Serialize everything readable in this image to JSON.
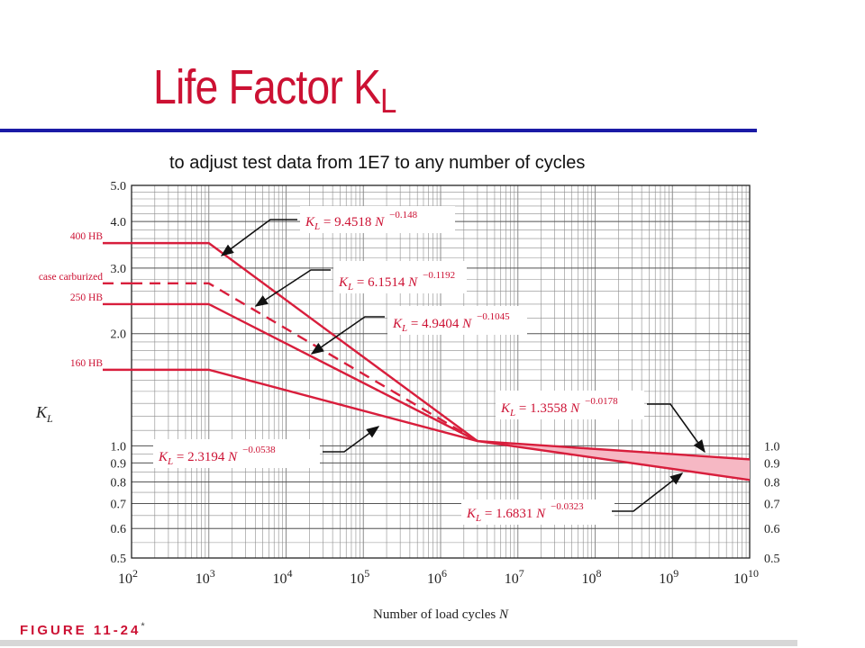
{
  "header": {
    "title_main": "Life Factor K",
    "title_sub": "L",
    "subtitle": "to adjust test data from 1E7 to any number of cycles"
  },
  "figure": {
    "label": "FIGURE 11-24",
    "mark": "*"
  },
  "colors": {
    "accent": "#cc1133",
    "line": "#d81e3c",
    "band": "#f6b8c4",
    "rule": "#1a1aa6",
    "grid": "#8c8c8c"
  },
  "chart_data": {
    "type": "line",
    "title": "",
    "xlabel": "Number of load cycles N",
    "ylabel": "K_L",
    "x_scale": "log",
    "y_scale": "log",
    "xlim": [
      100,
      10000000000
    ],
    "ylim": [
      0.5,
      5.0
    ],
    "grid": true,
    "x_tick_labels": [
      {
        "base": "10",
        "exp": "2",
        "value": 100
      },
      {
        "base": "10",
        "exp": "3",
        "value": 1000
      },
      {
        "base": "10",
        "exp": "4",
        "value": 10000
      },
      {
        "base": "10",
        "exp": "5",
        "value": 100000
      },
      {
        "base": "10",
        "exp": "6",
        "value": 1000000
      },
      {
        "base": "10",
        "exp": "7",
        "value": 10000000
      },
      {
        "base": "10",
        "exp": "8",
        "value": 100000000
      },
      {
        "base": "10",
        "exp": "9",
        "value": 1000000000
      },
      {
        "base": "10",
        "exp": "10",
        "value": 10000000000
      }
    ],
    "y_tick_labels_left": [
      "5.0",
      "4.0",
      "3.0",
      "2.0",
      "1.0",
      "0.9",
      "0.8",
      "0.7",
      "0.6",
      "0.5"
    ],
    "y_tick_values_left": [
      5.0,
      4.0,
      3.0,
      2.0,
      1.0,
      0.9,
      0.8,
      0.7,
      0.6,
      0.5
    ],
    "y_tick_labels_right": [
      "1.0",
      "0.9",
      "0.8",
      "0.7",
      "0.6",
      "0.5"
    ],
    "y_tick_values_right": [
      1.0,
      0.9,
      0.8,
      0.7,
      0.6,
      0.5
    ],
    "series": [
      {
        "name": "400 HB",
        "style": "solid",
        "x": [
          100,
          1000,
          3000000
        ],
        "y": [
          3.5,
          3.5,
          1.03
        ]
      },
      {
        "name": "case carburized",
        "style": "dashed",
        "x": [
          100,
          1000,
          3000000
        ],
        "y": [
          2.73,
          2.73,
          1.03
        ]
      },
      {
        "name": "250 HB",
        "style": "solid",
        "x": [
          100,
          1000,
          3000000
        ],
        "y": [
          2.4,
          2.4,
          1.03
        ]
      },
      {
        "name": "160 HB",
        "style": "solid",
        "x": [
          100,
          1000,
          3000000
        ],
        "y": [
          1.6,
          1.6,
          1.03
        ]
      },
      {
        "x": [
          3000000,
          10000000000
        ],
        "y": [
          1.03,
          0.92
        ],
        "style": "solid"
      },
      {
        "x": [
          3000000,
          10000000000
        ],
        "y": [
          1.03,
          0.81
        ],
        "style": "solid"
      }
    ],
    "band": {
      "x": [
        3000000,
        10000000000
      ],
      "y_upper": [
        1.03,
        0.92
      ],
      "y_lower": [
        1.03,
        0.81
      ]
    },
    "annotations": [
      {
        "base": "K",
        "sub": "L",
        "text": " = 9.4518 N",
        "exp": "−0.148",
        "target_x": 1000,
        "target_y": 3.5
      },
      {
        "base": "K",
        "sub": "L",
        "text": " = 6.1514 N",
        "exp": "−0.1192",
        "target_x": 4500,
        "target_y": 2.25
      },
      {
        "base": "K",
        "sub": "L",
        "text": " = 4.9404 N",
        "exp": "−0.1045",
        "target_x": 25000,
        "target_y": 1.6
      },
      {
        "base": "K",
        "sub": "L",
        "text": " = 1.3558 N",
        "exp": "−0.0178",
        "target_x": 2500000000,
        "target_y": 0.93
      },
      {
        "base": "K",
        "sub": "L",
        "text": " = 2.3194 N",
        "exp": "−0.0538",
        "target_x": 700000,
        "target_y": 1.22
      },
      {
        "base": "K",
        "sub": "L",
        "text": " = 1.6831 N",
        "exp": "−0.0323",
        "target_x": 1700000000,
        "target_y": 0.85
      }
    ]
  }
}
